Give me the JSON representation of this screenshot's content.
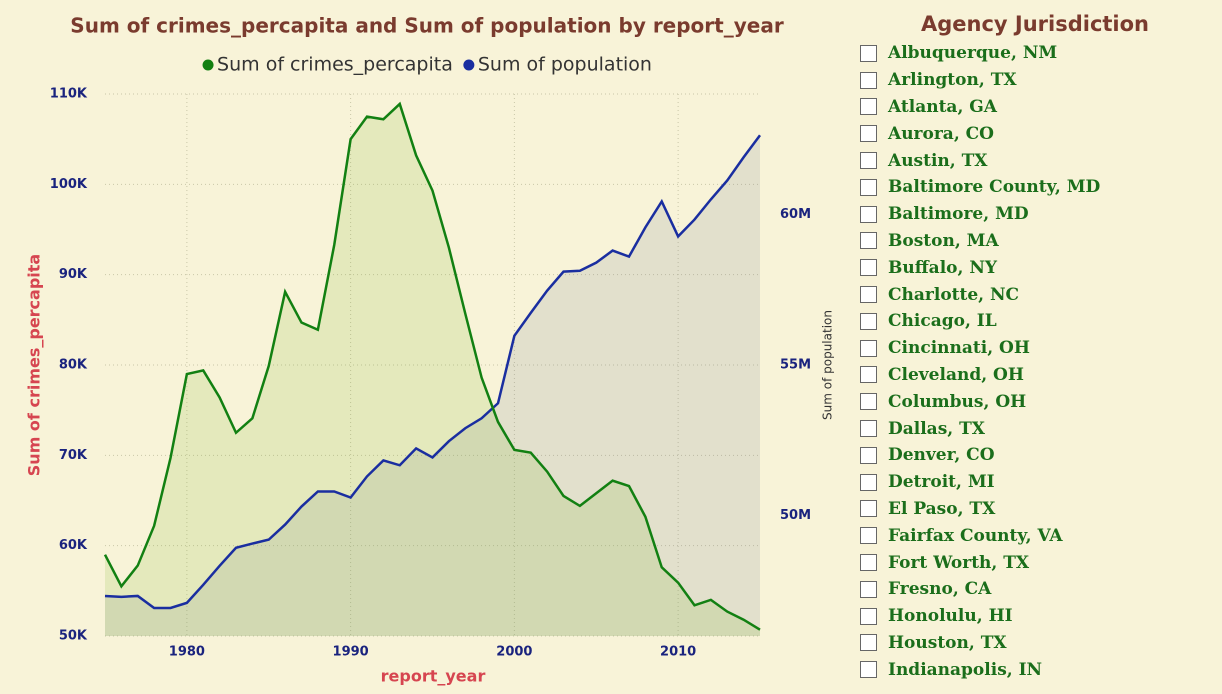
{
  "chart_data": {
    "type": "area",
    "title": "Sum of crimes_percapita and Sum of population by report_year",
    "x_label": "report_year",
    "y_label": "Sum of crimes_percapita",
    "y2_label": "Sum of population",
    "x": [
      1975,
      1976,
      1977,
      1978,
      1979,
      1980,
      1981,
      1982,
      1983,
      1984,
      1985,
      1986,
      1987,
      1988,
      1989,
      1990,
      1991,
      1992,
      1993,
      1994,
      1995,
      1996,
      1997,
      1998,
      1999,
      2000,
      2001,
      2002,
      2003,
      2004,
      2005,
      2006,
      2007,
      2008,
      2009,
      2010,
      2011,
      2012,
      2013,
      2014,
      2015
    ],
    "series": [
      {
        "name": "Sum of crimes_percapita",
        "color": "#128012",
        "values": [
          59000,
          55500,
          57800,
          62200,
          69700,
          79000,
          79400,
          76400,
          72500,
          74100,
          79900,
          88100,
          84700,
          83900,
          93300,
          105000,
          107500,
          107200,
          108900,
          103200,
          99300,
          93000,
          85700,
          78600,
          73700,
          70600,
          70300,
          68200,
          65500,
          64400,
          65800,
          67200,
          66600,
          63200,
          57600,
          55900,
          53400,
          54000,
          52700,
          51800,
          50700
        ]
      },
      {
        "name": "Sum of population",
        "color": "#1a2ea0",
        "axis": "y2",
        "values": [
          47330000,
          47300000,
          47330000,
          46930000,
          46930000,
          47100000,
          47700000,
          48330000,
          48930000,
          49070000,
          49200000,
          49700000,
          50300000,
          50800000,
          50800000,
          50600000,
          51300000,
          51830000,
          51670000,
          52230000,
          51930000,
          52470000,
          52900000,
          53230000,
          53730000,
          55970000,
          56730000,
          57470000,
          58100000,
          58130000,
          58400000,
          58800000,
          58600000,
          59570000,
          60430000,
          59270000,
          59830000,
          60500000,
          61130000,
          61900000,
          62630000
        ]
      }
    ],
    "xlim": [
      1975,
      2015
    ],
    "xticks": [
      1980,
      1990,
      2000,
      2010
    ],
    "ylim": [
      50000,
      110000
    ],
    "yticks": [
      {
        "value": 50000,
        "label": "50K"
      },
      {
        "value": 60000,
        "label": "60K"
      },
      {
        "value": 70000,
        "label": "70K"
      },
      {
        "value": 80000,
        "label": "80K"
      },
      {
        "value": 90000,
        "label": "90K"
      },
      {
        "value": 100000,
        "label": "100K"
      },
      {
        "value": 110000,
        "label": "110K"
      }
    ],
    "y2lim": [
      46000000,
      64000000
    ],
    "y2ticks": [
      {
        "value": 50000000,
        "label": "50M"
      },
      {
        "value": 55000000,
        "label": "55M"
      },
      {
        "value": 60000000,
        "label": "60M"
      }
    ],
    "grid": true,
    "legend": "top"
  },
  "slicer": {
    "title": "Agency Jurisdiction",
    "items": [
      "Albuquerque, NM",
      "Arlington, TX",
      "Atlanta, GA",
      "Aurora, CO",
      "Austin, TX",
      "Baltimore County, MD",
      "Baltimore, MD",
      "Boston, MA",
      "Buffalo, NY",
      "Charlotte, NC",
      "Chicago, IL",
      "Cincinnati, OH",
      "Cleveland, OH",
      "Columbus, OH",
      "Dallas, TX",
      "Denver, CO",
      "Detroit, MI",
      "El Paso, TX",
      "Fairfax County, VA",
      "Fort Worth, TX",
      "Fresno, CA",
      "Honolulu, HI",
      "Houston, TX",
      "Indianapolis, IN"
    ]
  }
}
